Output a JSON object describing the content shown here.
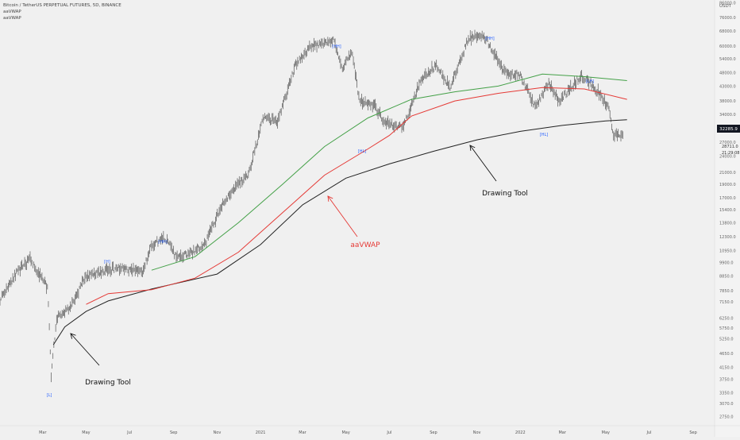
{
  "header": {
    "symbol_line": "Bitcoin / TetherUS PERPETUAL FUTURES, 5D, BINANCE",
    "indicator_1": "aaVWAP",
    "indicator_2": "aaVWAP"
  },
  "colors": {
    "background": "#f0f0f0",
    "price_bars": "#555555",
    "vwap_black": "#222222",
    "vwap_red": "#e53935",
    "vwap_green": "#43a047",
    "anchor_label": "#2962ff",
    "price_tag": "#131722"
  },
  "chart_data": {
    "type": "line",
    "title": "Bitcoin / TetherUS PERPETUAL FUTURES, 5D, BINANCE",
    "y_axis_unit": "USDT",
    "y_scale": "log",
    "ylim": [
      2550,
      88000
    ],
    "y_ticks": [
      86000,
      76000,
      68000,
      60000,
      54000,
      48000,
      43000,
      38000,
      34000,
      30000,
      27000,
      24000,
      21000,
      19000,
      17000,
      15400,
      13800,
      12300,
      10950,
      9900,
      8850,
      7850,
      7150,
      6250,
      5750,
      5250,
      4650,
      4150,
      3750,
      3350,
      3070,
      2750
    ],
    "y_tick_labels": [
      "86000.0",
      "76000.0",
      "68000.0",
      "60000.0",
      "54000.0",
      "48000.0",
      "43000.0",
      "38000.0",
      "34000.0",
      "30000.0",
      "27000.0",
      "24000.0",
      "21000.0",
      "19000.0",
      "17000.0",
      "15400.0",
      "13800.0",
      "12300.0",
      "10950.0",
      "9900.0",
      "8850.0",
      "7850.0",
      "7150.0",
      "6250.0",
      "5750.0",
      "5250.0",
      "4650.0",
      "4150.0",
      "3750.0",
      "3350.0",
      "3070.0",
      "2750.0"
    ],
    "x_tick_labels": [
      "Mar",
      "May",
      "Jul",
      "Sep",
      "Nov",
      "2021",
      "Mar",
      "May",
      "Jul",
      "Sep",
      "Nov",
      "2022",
      "Mar",
      "May",
      "Jul",
      "Sep"
    ],
    "x_ticks": [
      "2020-03-01",
      "2020-05-01",
      "2020-07-01",
      "2020-09-01",
      "2020-11-01",
      "2021-01-01",
      "2021-03-01",
      "2021-05-01",
      "2021-07-01",
      "2021-09-01",
      "2021-11-01",
      "2022-01-01",
      "2022-03-01",
      "2022-05-01",
      "2022-07-01",
      "2022-09-01"
    ],
    "xlim": [
      "2020-01-01",
      "2022-10-01"
    ],
    "price_series": {
      "name": "",
      "points": [
        [
          "2020-01-01",
          7300
        ],
        [
          "2020-01-20",
          8800
        ],
        [
          "2020-02-12",
          10200
        ],
        [
          "2020-02-25",
          9000
        ],
        [
          "2020-03-08",
          8000
        ],
        [
          "2020-03-13",
          3800
        ],
        [
          "2020-03-20",
          6200
        ],
        [
          "2020-04-10",
          6900
        ],
        [
          "2020-04-30",
          8800
        ],
        [
          "2020-05-25",
          9200
        ],
        [
          "2020-06-15",
          9500
        ],
        [
          "2020-07-20",
          9200
        ],
        [
          "2020-08-01",
          11500
        ],
        [
          "2020-08-20",
          12200
        ],
        [
          "2020-09-05",
          10300
        ],
        [
          "2020-09-25",
          10700
        ],
        [
          "2020-10-15",
          11500
        ],
        [
          "2020-11-05",
          15500
        ],
        [
          "2020-11-25",
          18500
        ],
        [
          "2020-12-15",
          20500
        ],
        [
          "2021-01-05",
          33000
        ],
        [
          "2021-01-25",
          32000
        ],
        [
          "2021-02-20",
          52000
        ],
        [
          "2021-03-13",
          60000
        ],
        [
          "2021-04-14",
          63000
        ],
        [
          "2021-04-25",
          50000
        ],
        [
          "2021-05-10",
          57000
        ],
        [
          "2021-05-20",
          38000
        ],
        [
          "2021-06-10",
          36500
        ],
        [
          "2021-06-25",
          31500
        ],
        [
          "2021-07-20",
          30500
        ],
        [
          "2021-08-15",
          46000
        ],
        [
          "2021-09-05",
          51000
        ],
        [
          "2021-09-25",
          42500
        ],
        [
          "2021-10-20",
          64000
        ],
        [
          "2021-11-10",
          66000
        ],
        [
          "2021-11-25",
          57000
        ],
        [
          "2021-12-10",
          48000
        ],
        [
          "2022-01-01",
          47000
        ],
        [
          "2022-01-22",
          36000
        ],
        [
          "2022-02-10",
          44000
        ],
        [
          "2022-02-25",
          38000
        ],
        [
          "2022-03-28",
          47000
        ],
        [
          "2022-04-20",
          41000
        ],
        [
          "2022-05-05",
          36000
        ],
        [
          "2022-05-12",
          28500
        ],
        [
          "2022-05-25",
          29000
        ]
      ]
    },
    "series": [
      {
        "name": "",
        "color": "#222222",
        "points": [
          [
            "2020-03-16",
            5000
          ],
          [
            "2020-04-01",
            5800
          ],
          [
            "2020-05-01",
            6600
          ],
          [
            "2020-06-01",
            7200
          ],
          [
            "2020-08-01",
            7950
          ],
          [
            "2020-11-01",
            9000
          ],
          [
            "2021-01-01",
            11500
          ],
          [
            "2021-03-01",
            16000
          ],
          [
            "2021-05-01",
            20000
          ],
          [
            "2021-07-01",
            22500
          ],
          [
            "2021-09-01",
            25000
          ],
          [
            "2021-11-01",
            27500
          ],
          [
            "2022-01-01",
            29500
          ],
          [
            "2022-03-01",
            31000
          ],
          [
            "2022-05-01",
            32200
          ],
          [
            "2022-05-31",
            32500
          ]
        ]
      },
      {
        "name": "aaVWAP",
        "color": "#e53935",
        "points": [
          [
            "2020-05-01",
            7000
          ],
          [
            "2020-06-01",
            7650
          ],
          [
            "2020-08-01",
            7900
          ],
          [
            "2020-10-01",
            8700
          ],
          [
            "2020-12-01",
            10800
          ],
          [
            "2021-02-01",
            15000
          ],
          [
            "2021-04-01",
            20500
          ],
          [
            "2021-06-01",
            25500
          ],
          [
            "2021-07-01",
            28500
          ],
          [
            "2021-08-01",
            33500
          ],
          [
            "2021-10-01",
            38000
          ],
          [
            "2021-12-01",
            40500
          ],
          [
            "2022-02-01",
            42500
          ],
          [
            "2022-04-01",
            42000
          ],
          [
            "2022-05-31",
            38500
          ]
        ]
      },
      {
        "name": "",
        "color": "#43a047",
        "points": [
          [
            "2020-08-01",
            9300
          ],
          [
            "2020-10-01",
            10400
          ],
          [
            "2020-12-01",
            13800
          ],
          [
            "2021-02-01",
            19000
          ],
          [
            "2021-04-01",
            26000
          ],
          [
            "2021-06-01",
            33000
          ],
          [
            "2021-08-01",
            38500
          ],
          [
            "2021-10-01",
            41000
          ],
          [
            "2021-12-01",
            43000
          ],
          [
            "2022-02-01",
            47500
          ],
          [
            "2022-04-01",
            46500
          ],
          [
            "2022-05-31",
            45000
          ]
        ]
      }
    ],
    "current_price_tag": "32285.9",
    "price_tags": [
      "28711.0",
      "21:29:08"
    ],
    "annotations": [
      {
        "text": "aaVWAP",
        "color": "#e53935"
      },
      {
        "text": "Drawing Tool",
        "color": "#111111"
      },
      {
        "text": "Drawing Tool",
        "color": "#111111"
      }
    ],
    "anchor_labels": [
      "[L]",
      "[H]",
      "[HH]",
      "[HH]",
      "[HL]",
      "[HH]",
      "[HL]",
      "[LH]"
    ],
    "grid": false,
    "legend": "top-left"
  }
}
